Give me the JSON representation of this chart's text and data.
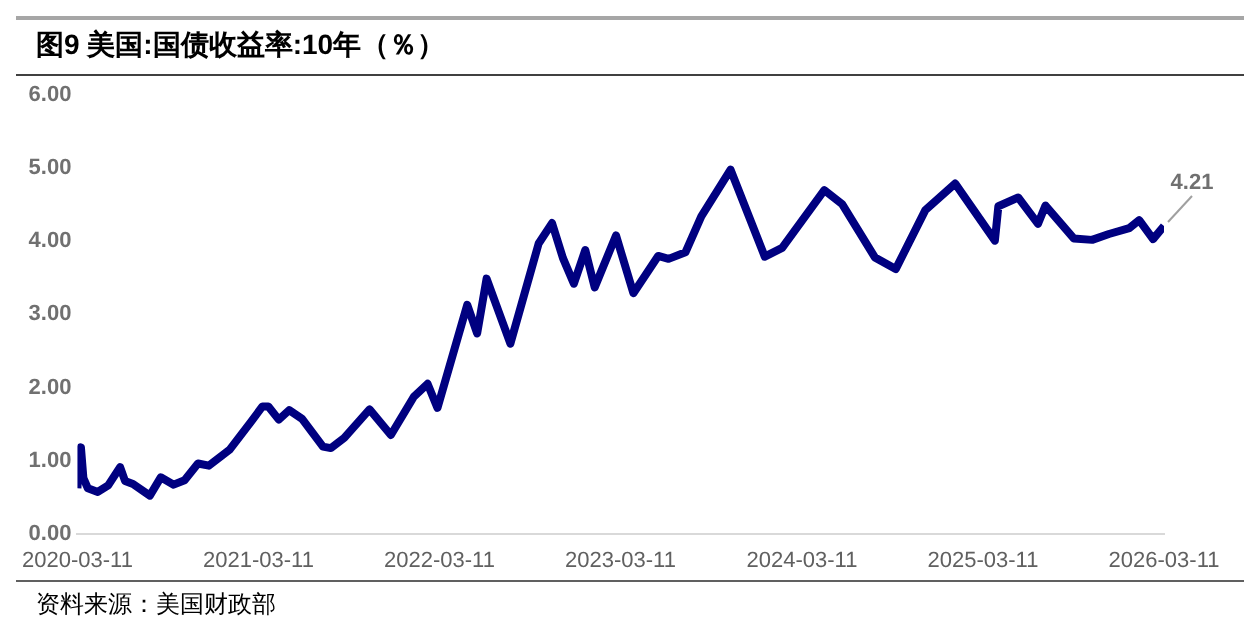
{
  "chart_data": {
    "type": "line",
    "title": "图9  美国:国债收益率:10年（％）",
    "x": [
      "2020-03-11",
      "2020-03-13",
      "2020-03-18",
      "2020-03-23",
      "2020-04-01",
      "2020-04-21",
      "2020-05-12",
      "2020-06-05",
      "2020-06-15",
      "2020-07-01",
      "2020-08-04",
      "2020-08-26",
      "2020-09-21",
      "2020-10-13",
      "2020-11-09",
      "2020-12-01",
      "2021-01-12",
      "2021-02-25",
      "2021-03-19",
      "2021-03-31",
      "2021-04-21",
      "2021-05-12",
      "2021-06-07",
      "2021-07-19",
      "2021-08-04",
      "2021-08-31",
      "2021-10-21",
      "2021-12-03",
      "2022-01-18",
      "2022-02-15",
      "2022-03-07",
      "2022-05-06",
      "2022-05-26",
      "2022-06-14",
      "2022-08-01",
      "2022-09-27",
      "2022-10-24",
      "2022-11-15",
      "2022-12-07",
      "2022-12-30",
      "2023-01-18",
      "2023-03-02",
      "2023-04-06",
      "2023-05-26",
      "2023-06-16",
      "2023-07-20",
      "2023-08-21",
      "2023-10-19",
      "2023-12-27",
      "2024-01-31",
      "2024-04-25",
      "2024-05-31",
      "2024-08-05",
      "2024-09-16",
      "2024-11-15",
      "2025-01-14",
      "2025-04-04",
      "2025-04-11",
      "2025-05-21",
      "2025-06-30",
      "2025-07-15",
      "2025-09-10",
      "2025-10-17",
      "2025-11-20",
      "2025-12-31",
      "2026-01-20",
      "2026-02-17",
      "2026-03-11"
    ],
    "series": [
      {
        "color": "#000080",
        "values": [
          0.62,
          0.98,
          1.18,
          0.76,
          0.62,
          0.57,
          0.66,
          0.91,
          0.72,
          0.68,
          0.52,
          0.77,
          0.67,
          0.73,
          0.96,
          0.93,
          1.15,
          1.54,
          1.74,
          1.74,
          1.56,
          1.69,
          1.57,
          1.19,
          1.17,
          1.31,
          1.7,
          1.35,
          1.87,
          2.05,
          1.72,
          3.13,
          2.74,
          3.49,
          2.6,
          3.97,
          4.25,
          3.77,
          3.42,
          3.88,
          3.37,
          4.08,
          3.29,
          3.8,
          3.76,
          3.85,
          4.34,
          4.98,
          3.79,
          3.91,
          4.7,
          4.51,
          3.78,
          3.62,
          4.43,
          4.79,
          4.01,
          4.48,
          4.6,
          4.24,
          4.49,
          4.04,
          4.02,
          4.1,
          4.18,
          4.29,
          4.03,
          4.21
        ]
      }
    ],
    "xlim": [
      "2020-03-11",
      "2026-03-11"
    ],
    "xticks": [
      "2020-03-11",
      "2021-03-11",
      "2022-03-11",
      "2023-03-11",
      "2024-03-11",
      "2025-03-11",
      "2026-03-11"
    ],
    "ylim": [
      0,
      6
    ],
    "yticks": [
      {
        "value": 0,
        "label": "0.00"
      },
      {
        "value": 1,
        "label": "1.00"
      },
      {
        "value": 2,
        "label": "2.00"
      },
      {
        "value": 3,
        "label": "3.00"
      },
      {
        "value": 4,
        "label": "4.00"
      },
      {
        "value": 5,
        "label": "5.00"
      },
      {
        "value": 6,
        "label": "6.00"
      }
    ],
    "annotations": [
      {
        "text": "4.21",
        "x": "2026-03-11",
        "y": 4.21
      },
      "资料来源：美国财政部"
    ],
    "legend": false
  }
}
